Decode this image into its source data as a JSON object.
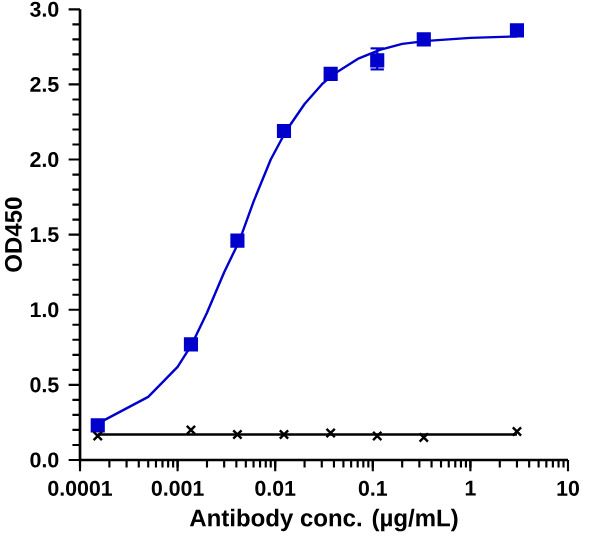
{
  "chart_data": {
    "type": "scatter",
    "xlabel": "Antibody conc. (µg/mL)",
    "ylabel": "OD450",
    "log": "x",
    "xlim": [
      0.0001,
      10
    ],
    "xticks": [
      0.0001,
      0.001,
      0.01,
      0.1,
      1,
      10
    ],
    "ylim": [
      0,
      3
    ],
    "yticks": [
      {
        "value": 0,
        "label": "0.0"
      },
      0.5,
      {
        "value": 1,
        "label": "1.0"
      },
      1.5,
      {
        "value": 2,
        "label": "2.0"
      },
      2.5,
      {
        "value": 3,
        "label": "3.0"
      }
    ],
    "grid": false,
    "series": [
      {
        "type": "line",
        "color": "#0000cc",
        "marker": "none",
        "x": [
          0.00015,
          0.0005,
          0.001,
          0.0014,
          0.002,
          0.003,
          0.0043,
          0.006,
          0.009,
          0.0129,
          0.02,
          0.03,
          0.04,
          0.07,
          0.118,
          0.2,
          0.36,
          1,
          3
        ],
        "values": [
          0.24,
          0.42,
          0.62,
          0.77,
          0.98,
          1.25,
          1.46,
          1.72,
          2.0,
          2.19,
          2.37,
          2.5,
          2.57,
          2.67,
          2.73,
          2.77,
          2.79,
          2.81,
          2.82
        ]
      },
      {
        "color": "#0000cc",
        "marker": "square",
        "x": [
          0.000152,
          0.00137,
          0.0041,
          0.0123,
          0.037,
          0.111,
          0.333,
          3
        ],
        "values": [
          0.23,
          0.77,
          1.46,
          2.19,
          2.57,
          2.66,
          2.8,
          2.86
        ],
        "errors": [
          null,
          null,
          null,
          null,
          null,
          [
            2.6,
            2.74
          ],
          null,
          null
        ]
      },
      {
        "type": "line",
        "color": "#000000",
        "marker": "none",
        "x": [
          0.000152,
          3
        ],
        "values": [
          0.17,
          0.17
        ]
      },
      {
        "color": "#000000",
        "marker": "cross",
        "x": [
          0.000152,
          0.00137,
          0.0041,
          0.0123,
          0.037,
          0.111,
          0.333,
          3
        ],
        "values": [
          0.16,
          0.2,
          0.17,
          0.17,
          0.18,
          0.16,
          0.15,
          0.19
        ]
      }
    ]
  }
}
